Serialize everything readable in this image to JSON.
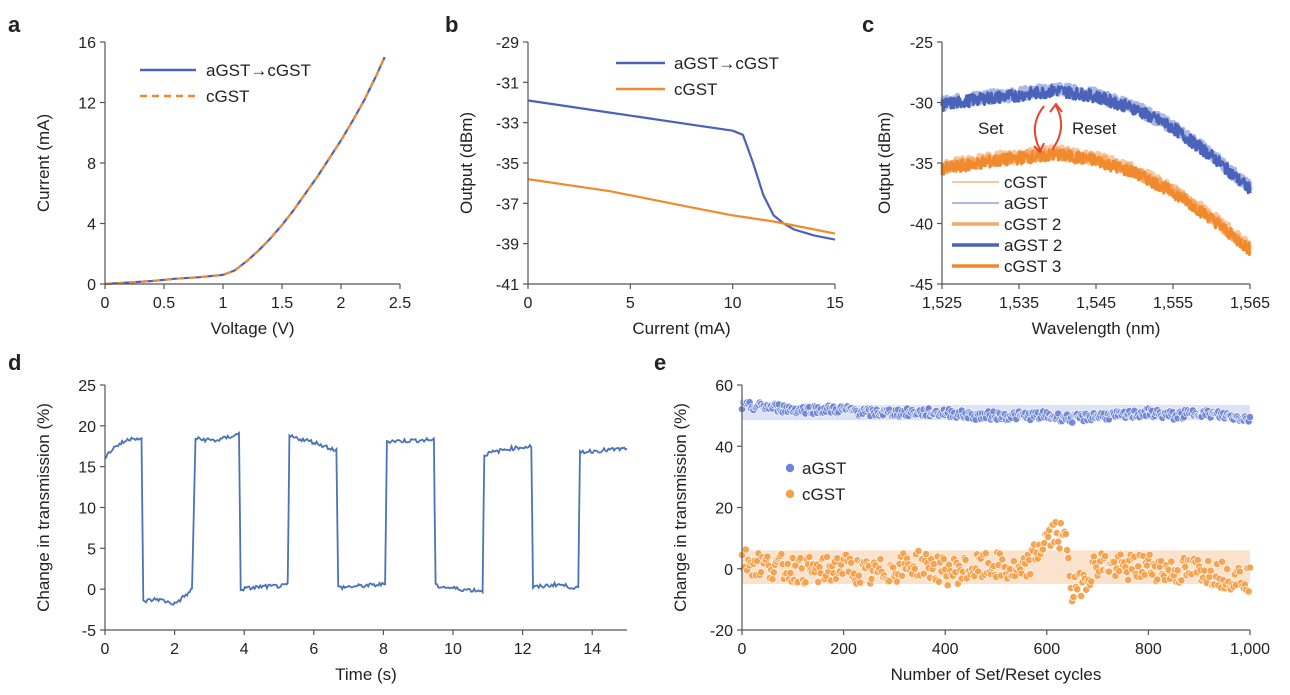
{
  "chart_data": [
    {
      "panel": "a",
      "type": "line",
      "xlabel": "Voltage (V)",
      "ylabel": "Current (mA)",
      "xlim": [
        0,
        2.5
      ],
      "ylim": [
        0,
        16
      ],
      "xticks": [
        0,
        0.5,
        1,
        1.5,
        2,
        2.5
      ],
      "xtick_labels": [
        "0",
        "0.5",
        "1",
        "1.5",
        "2",
        "2.5"
      ],
      "yticks": [
        0,
        4,
        8,
        12,
        16
      ],
      "ytick_labels": [
        "0",
        "4",
        "8",
        "12",
        "16"
      ],
      "legend_position": "top-left",
      "series": [
        {
          "name": "aGST→cGST",
          "color": "#4a63b8",
          "style": "solid",
          "x": [
            0,
            0.2,
            0.4,
            0.6,
            0.8,
            1.0,
            1.1,
            1.2,
            1.3,
            1.4,
            1.5,
            1.6,
            1.7,
            1.8,
            1.9,
            2.0,
            2.1,
            2.2,
            2.3,
            2.37
          ],
          "y": [
            0,
            0.1,
            0.2,
            0.35,
            0.45,
            0.6,
            0.9,
            1.5,
            2.2,
            3.0,
            3.9,
            4.9,
            6.0,
            7.1,
            8.3,
            9.5,
            10.8,
            12.2,
            13.8,
            15.0
          ]
        },
        {
          "name": "cGST",
          "color": "#f08a2c",
          "style": "dashed",
          "x": [
            0,
            0.2,
            0.4,
            0.6,
            0.8,
            1.0,
            1.1,
            1.2,
            1.3,
            1.4,
            1.5,
            1.6,
            1.7,
            1.8,
            1.9,
            2.0,
            2.1,
            2.2,
            2.3,
            2.37
          ],
          "y": [
            0,
            0.1,
            0.2,
            0.35,
            0.45,
            0.6,
            0.9,
            1.5,
            2.2,
            3.0,
            3.9,
            4.9,
            6.0,
            7.1,
            8.3,
            9.5,
            10.8,
            12.2,
            13.8,
            15.0
          ]
        }
      ]
    },
    {
      "panel": "b",
      "type": "line",
      "xlabel": "Current (mA)",
      "ylabel": "Output (dBm)",
      "xlim": [
        0,
        15
      ],
      "ylim": [
        -41,
        -29
      ],
      "xticks": [
        0,
        5,
        10,
        15
      ],
      "xtick_labels": [
        "0",
        "5",
        "10",
        "15"
      ],
      "yticks": [
        -41,
        -39,
        -37,
        -35,
        -33,
        -31,
        -29
      ],
      "ytick_labels": [
        "-41",
        "-39",
        "-37",
        "-35",
        "-33",
        "-31",
        "-29"
      ],
      "legend_position": "top-right",
      "series": [
        {
          "name": "aGST→cGST",
          "color": "#4a63b8",
          "style": "solid",
          "x": [
            0,
            2,
            4,
            6,
            8,
            10,
            10.5,
            11,
            11.5,
            12,
            12.5,
            13,
            14,
            15
          ],
          "y": [
            -31.9,
            -32.2,
            -32.5,
            -32.8,
            -33.1,
            -33.4,
            -33.6,
            -35.0,
            -36.6,
            -37.6,
            -38.0,
            -38.3,
            -38.6,
            -38.8
          ]
        },
        {
          "name": "cGST",
          "color": "#f08a2c",
          "style": "solid",
          "x": [
            0,
            2,
            4,
            6,
            8,
            10,
            12,
            14,
            15
          ],
          "y": [
            -35.8,
            -36.1,
            -36.4,
            -36.8,
            -37.2,
            -37.6,
            -37.9,
            -38.3,
            -38.5
          ]
        }
      ]
    },
    {
      "panel": "c",
      "type": "line",
      "xlabel": "Wavelength (nm)",
      "ylabel": "Output (dBm)",
      "xlim": [
        1525,
        1565
      ],
      "ylim": [
        -45,
        -25
      ],
      "xticks": [
        1525,
        1535,
        1545,
        1555,
        1565
      ],
      "xtick_labels": [
        "1,525",
        "1,535",
        "1,545",
        "1,555",
        "1,565"
      ],
      "yticks": [
        -45,
        -40,
        -35,
        -30,
        -25
      ],
      "ytick_labels": [
        "-45",
        "-40",
        "-35",
        "-30",
        "-25"
      ],
      "legend_position": "bottom-left",
      "annotations": [
        "Set",
        "Reset"
      ],
      "series": [
        {
          "name": "cGST",
          "color": "#f7c89f",
          "x": [
            1525,
            1530,
            1535,
            1540,
            1545,
            1550,
            1555,
            1560,
            1565
          ],
          "y": [
            -35.3,
            -34.8,
            -34.4,
            -34.1,
            -34.6,
            -35.6,
            -37.2,
            -39.4,
            -42.0
          ]
        },
        {
          "name": "aGST",
          "color": "#a9b8e6",
          "x": [
            1525,
            1530,
            1535,
            1540,
            1545,
            1550,
            1555,
            1560,
            1565
          ],
          "y": [
            -30.1,
            -29.6,
            -29.3,
            -28.9,
            -29.4,
            -30.4,
            -32.0,
            -34.3,
            -37.1
          ]
        },
        {
          "name": "cGST 2",
          "color": "#f5a86a",
          "x": [
            1525,
            1530,
            1535,
            1540,
            1545,
            1550,
            1555,
            1560,
            1565
          ],
          "y": [
            -35.4,
            -34.9,
            -34.5,
            -34.2,
            -34.7,
            -35.7,
            -37.3,
            -39.5,
            -42.1
          ]
        },
        {
          "name": "aGST 2",
          "color": "#4a63b8",
          "x": [
            1525,
            1530,
            1535,
            1540,
            1545,
            1550,
            1555,
            1560,
            1565
          ],
          "y": [
            -30.2,
            -29.7,
            -29.4,
            -29.0,
            -29.5,
            -30.5,
            -32.1,
            -34.4,
            -37.2
          ]
        },
        {
          "name": "cGST 3",
          "color": "#f08a2c",
          "x": [
            1525,
            1530,
            1535,
            1540,
            1545,
            1550,
            1555,
            1560,
            1565
          ],
          "y": [
            -35.5,
            -35.0,
            -34.6,
            -34.3,
            -34.8,
            -35.8,
            -37.4,
            -39.6,
            -42.2
          ]
        }
      ]
    },
    {
      "panel": "d",
      "type": "line",
      "xlabel": "Time (s)",
      "ylabel": "Change in transmission (%)",
      "xlim": [
        0,
        15
      ],
      "ylim": [
        -5,
        25
      ],
      "xticks": [
        0,
        2,
        4,
        6,
        8,
        10,
        12,
        14
      ],
      "xtick_labels": [
        "0",
        "2",
        "4",
        "6",
        "8",
        "10",
        "12",
        "14"
      ],
      "yticks": [
        -5,
        0,
        5,
        10,
        15,
        20,
        25
      ],
      "ytick_labels": [
        "-5",
        "0",
        "5",
        "10",
        "15",
        "20",
        "25"
      ],
      "series": [
        {
          "name": "",
          "color": "#4a73b8",
          "x": [
            0,
            0.3,
            0.8,
            1.05,
            1.1,
            1.5,
            2.0,
            2.4,
            2.5,
            2.6,
            3.2,
            3.85,
            3.9,
            4.5,
            5.2,
            5.25,
            5.3,
            6.0,
            6.65,
            6.7,
            7.4,
            8.05,
            8.1,
            8.8,
            9.45,
            9.5,
            10.2,
            10.85,
            10.9,
            11.6,
            12.25,
            12.3,
            13.0,
            13.6,
            13.65,
            14.3,
            15.0
          ],
          "y": [
            16.2,
            17.5,
            18.6,
            18.3,
            -1.5,
            -1.2,
            -1.8,
            -0.5,
            0,
            18.4,
            18.2,
            19.0,
            0,
            0.3,
            0.4,
            0.6,
            18.7,
            18.0,
            17.0,
            0.2,
            0.4,
            0.6,
            18.1,
            18.2,
            18.3,
            0.4,
            0,
            -0.2,
            16.5,
            17.2,
            17.5,
            0.2,
            0.6,
            0.1,
            16.8,
            17.0,
            17.2
          ]
        }
      ]
    },
    {
      "panel": "e",
      "type": "scatter",
      "xlabel": "Number of Set/Reset cycles",
      "ylabel": "Change in transmission (%)",
      "xlim": [
        0,
        1000
      ],
      "ylim": [
        -20,
        60
      ],
      "xticks": [
        0,
        200,
        400,
        600,
        800,
        1000
      ],
      "xtick_labels": [
        "0",
        "200",
        "400",
        "600",
        "800",
        "1,000"
      ],
      "yticks": [
        -20,
        0,
        20,
        40,
        60
      ],
      "ytick_labels": [
        "-20",
        "0",
        "20",
        "40",
        "60"
      ],
      "legend_position": "center-left",
      "series": [
        {
          "name": "aGST",
          "color": "#6f86d6",
          "band": [
            48.5,
            53.5
          ],
          "band_color": "#dde3f5",
          "x": [
            0,
            50,
            100,
            150,
            200,
            250,
            300,
            350,
            400,
            450,
            500,
            550,
            600,
            650,
            700,
            750,
            800,
            850,
            900,
            950,
            1000
          ],
          "y": [
            53,
            53,
            52,
            52,
            52,
            51,
            51,
            51,
            51,
            50,
            50,
            50,
            50,
            49,
            50,
            50,
            51,
            50,
            51,
            50,
            49
          ]
        },
        {
          "name": "cGST",
          "color": "#f5a04a",
          "band": [
            -5,
            6
          ],
          "band_color": "#fbe2cc",
          "x": [
            0,
            50,
            100,
            150,
            200,
            250,
            300,
            350,
            400,
            450,
            500,
            550,
            600,
            620,
            640,
            650,
            700,
            750,
            800,
            850,
            900,
            950,
            1000
          ],
          "y": [
            3,
            1,
            0,
            -1,
            1,
            -2,
            0,
            2,
            -1,
            0,
            1,
            -2,
            10,
            12,
            8,
            -8,
            2,
            0,
            1,
            -1,
            0,
            -2,
            -3
          ]
        }
      ]
    }
  ]
}
